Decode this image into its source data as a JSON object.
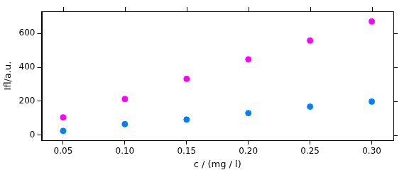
{
  "chart_data": {
    "type": "scatter",
    "x_label": "c / (mg / l)",
    "y_label": "Ifl/a.u.",
    "x": [
      0.05,
      0.1,
      0.15,
      0.2,
      0.25,
      0.3
    ],
    "series": [
      {
        "color": "#ff00ff",
        "marker": "circle",
        "values": [
          105,
          213,
          332,
          447,
          558,
          670
        ]
      },
      {
        "color": "#0080ff",
        "marker": "circle",
        "values": [
          25,
          65,
          92,
          130,
          168,
          198
        ]
      }
    ],
    "xlim": [
      0.0325,
      0.3175
    ],
    "xticks": [
      0.05,
      {
        "value": 0.1,
        "label": "0.10"
      },
      0.15,
      {
        "value": 0.2,
        "label": "0.20"
      },
      0.25,
      {
        "value": 0.3,
        "label": "0.30"
      }
    ],
    "ylim": [
      -30,
      730
    ],
    "yticks": [
      0,
      200,
      400,
      600
    ],
    "grid": false
  }
}
